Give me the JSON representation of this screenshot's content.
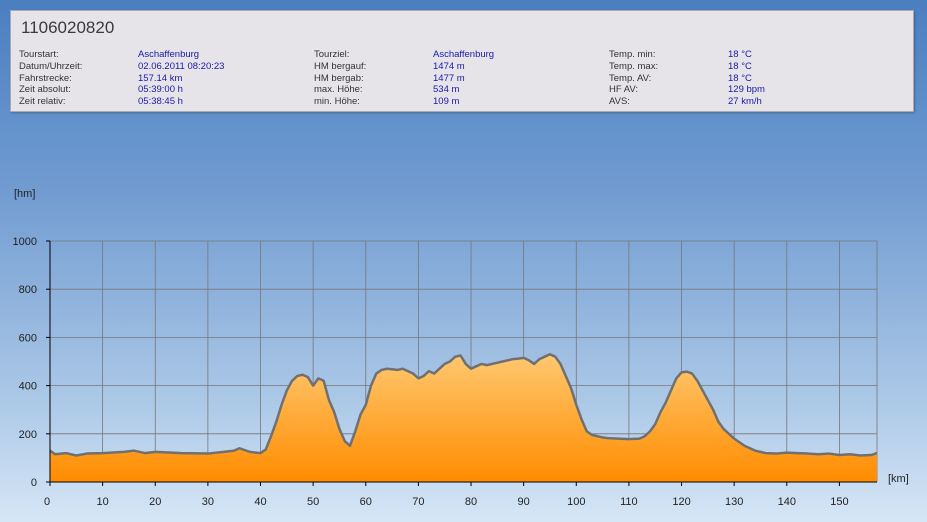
{
  "panel": {
    "title": "1106020820",
    "columns": [
      {
        "rows": [
          {
            "label": "Tourstart:",
            "value": "Aschaffenburg"
          },
          {
            "label": "Datum/Uhrzeit:",
            "value": "02.06.2011 08:20:23"
          },
          {
            "label": "Fahrstrecke:",
            "value": "157.14 km"
          },
          {
            "label": "Zeit absolut:",
            "value": "05:39:00 h"
          },
          {
            "label": "Zeit relativ:",
            "value": "05:38:45 h"
          }
        ]
      },
      {
        "rows": [
          {
            "label": "Tourziel:",
            "value": "Aschaffenburg"
          },
          {
            "label": "HM bergauf:",
            "value": "1474 m"
          },
          {
            "label": "HM bergab:",
            "value": "1477 m"
          },
          {
            "label": "max. Höhe:",
            "value": "534 m"
          },
          {
            "label": "min. Höhe:",
            "value": "109 m"
          }
        ]
      },
      {
        "rows": [
          {
            "label": "Temp. min:",
            "value": "18 °C"
          },
          {
            "label": "Temp. max:",
            "value": "18 °C"
          },
          {
            "label": "Temp. AV:",
            "value": "18 °C"
          },
          {
            "label": "HF AV:",
            "value": "129 bpm"
          },
          {
            "label": "AVS:",
            "value": "27 km/h"
          }
        ]
      }
    ]
  },
  "chart_data": {
    "type": "area",
    "ylabel": "[hm]",
    "xlabel": "[km]",
    "ylim": [
      0,
      1000
    ],
    "xlim": [
      0,
      157.14
    ],
    "yticks": [
      0,
      200,
      400,
      600,
      800,
      1000
    ],
    "xticks": [
      0,
      10,
      20,
      30,
      40,
      50,
      60,
      70,
      80,
      90,
      100,
      110,
      120,
      130,
      140,
      150
    ],
    "grid": true,
    "fill_color_top": "#ffc870",
    "fill_color_bottom": "#ff8c00",
    "line_color": "#707070",
    "series": [
      {
        "x": [
          0,
          1,
          3,
          5,
          7,
          10,
          14,
          16,
          18,
          20,
          25,
          30,
          33,
          35,
          36,
          38,
          40,
          41,
          42,
          43,
          44,
          45,
          46,
          47,
          48,
          49,
          50,
          51,
          52,
          53,
          54,
          55,
          56,
          57,
          58,
          59,
          60,
          61,
          62,
          63,
          64,
          65,
          66,
          67,
          68,
          69,
          70,
          71,
          72,
          73,
          74,
          75,
          76,
          77,
          78,
          79,
          80,
          81,
          82,
          83,
          84,
          85,
          86,
          87,
          88,
          89,
          90,
          91,
          92,
          93,
          94,
          95,
          96,
          97,
          98,
          99,
          100,
          101,
          102,
          103,
          104,
          105,
          106,
          108,
          110,
          112,
          113,
          114,
          115,
          116,
          117,
          118,
          119,
          120,
          121,
          122,
          123,
          124,
          125,
          126,
          127,
          128,
          129,
          130,
          132,
          134,
          136,
          138,
          140,
          142,
          144,
          146,
          148,
          150,
          152,
          154,
          156,
          157.14
        ],
        "values": [
          130,
          115,
          120,
          110,
          118,
          120,
          125,
          130,
          120,
          125,
          120,
          118,
          125,
          130,
          140,
          125,
          120,
          135,
          190,
          250,
          320,
          380,
          420,
          440,
          445,
          435,
          400,
          430,
          420,
          340,
          290,
          220,
          170,
          150,
          210,
          280,
          320,
          400,
          450,
          465,
          470,
          468,
          465,
          470,
          460,
          450,
          430,
          440,
          460,
          450,
          470,
          490,
          500,
          520,
          525,
          490,
          470,
          480,
          490,
          485,
          490,
          495,
          500,
          505,
          510,
          512,
          515,
          505,
          490,
          510,
          520,
          530,
          520,
          490,
          440,
          390,
          320,
          260,
          210,
          195,
          190,
          185,
          182,
          180,
          178,
          180,
          190,
          210,
          240,
          290,
          330,
          380,
          430,
          455,
          458,
          450,
          420,
          380,
          340,
          300,
          250,
          220,
          200,
          180,
          150,
          130,
          120,
          118,
          122,
          120,
          118,
          115,
          118,
          112,
          115,
          110,
          112,
          120
        ]
      }
    ]
  }
}
